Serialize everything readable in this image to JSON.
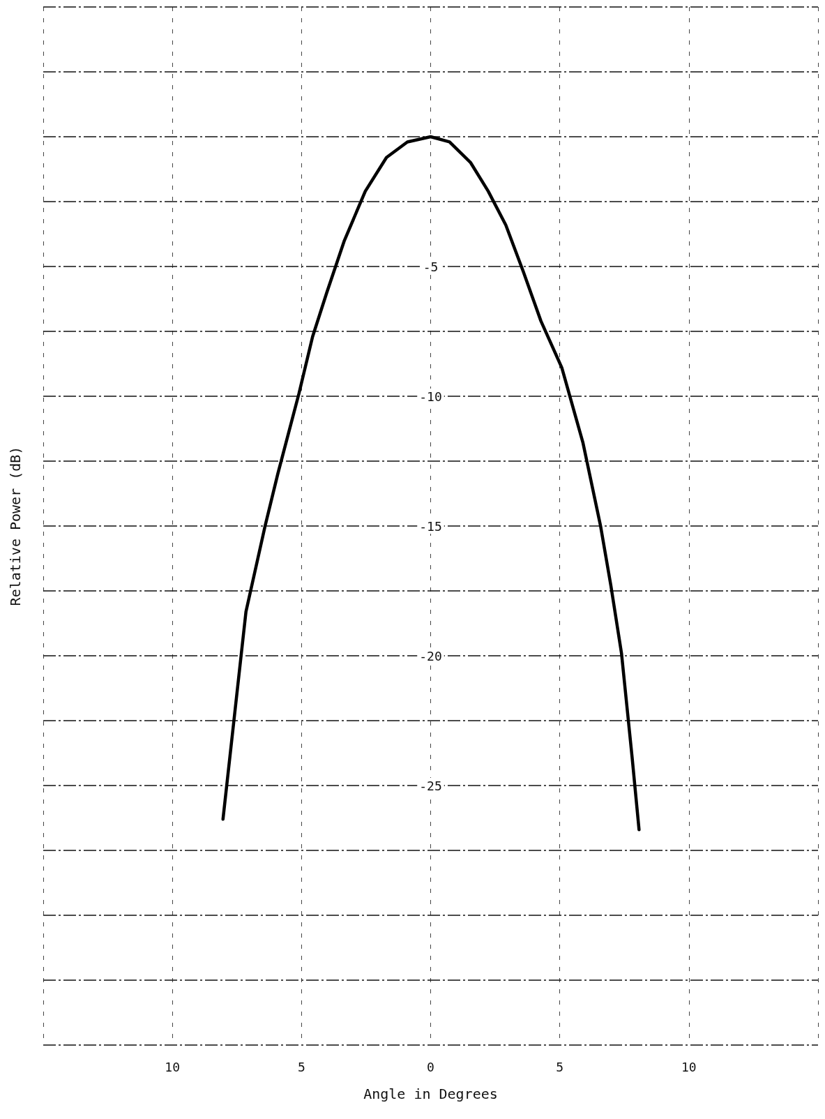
{
  "chart_data": {
    "type": "line",
    "xlabel": "Angle in Degrees",
    "ylabel": "Relative Power (dB)",
    "x": [
      -8.04,
      -7.15,
      -6.41,
      -5.92,
      -5.1,
      -4.57,
      -4.02,
      -3.34,
      -2.53,
      -1.71,
      -0.9,
      0,
      0.73,
      1.55,
      2.23,
      2.91,
      3.59,
      4.27,
      5.08,
      5.9,
      6.58,
      6.98,
      7.39,
      7.8,
      8.07
    ],
    "series": [
      {
        "color": "#000000",
        "values": [
          -26.3,
          -18.3,
          -15.0,
          -13.0,
          -9.9,
          -7.7,
          -6.0,
          -4.0,
          -2.1,
          -0.8,
          -0.2,
          0,
          -0.2,
          -1.0,
          -2.1,
          -3.4,
          -5.2,
          -7.1,
          -8.9,
          -11.8,
          -15.0,
          -17.3,
          -19.9,
          -23.9,
          -26.7
        ]
      }
    ],
    "xlim": [
      -15,
      15
    ],
    "xticks": [
      {
        "value": -15,
        "label": null
      },
      {
        "value": -10,
        "label": "10"
      },
      {
        "value": -5,
        "label": "5"
      },
      0,
      5,
      10,
      {
        "value": 15,
        "label": null
      }
    ],
    "ylim": [
      -35,
      5
    ],
    "yticks": [
      {
        "value": -35,
        "label": null
      },
      {
        "value": -32.5,
        "label": null
      },
      {
        "value": -30,
        "label": null
      },
      {
        "value": -27.5,
        "label": null
      },
      -25,
      {
        "value": -22.5,
        "label": null
      },
      -20,
      {
        "value": -17.5,
        "label": null
      },
      -15,
      {
        "value": -12.5,
        "label": null
      },
      -10,
      {
        "value": -7.5,
        "label": null
      },
      -5,
      {
        "value": -2.5,
        "label": null
      },
      {
        "value": 0,
        "label": null
      },
      {
        "value": 2.5,
        "label": null
      },
      {
        "value": 5,
        "label": null
      }
    ],
    "grid": true,
    "marker": "none",
    "line_style": "solid"
  }
}
